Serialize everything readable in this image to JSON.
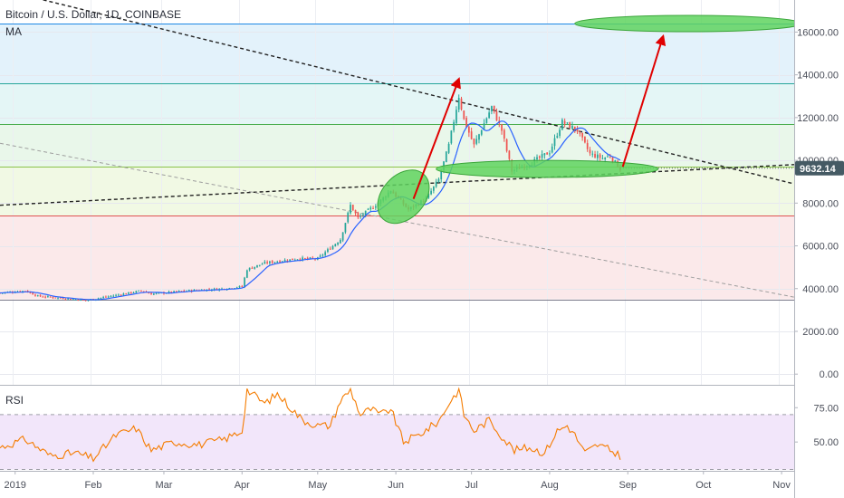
{
  "header": {
    "title": "Bitcoin / U.S. Dollar, 1D, COINBASE",
    "indicator": "MA"
  },
  "price_tag": "9632.14",
  "rsi_label": "RSI",
  "colors": {
    "bull": "#26a69a",
    "bear": "#ef5350",
    "ma": "#2962ff",
    "rsi": "#f57c00",
    "arrow": "#e00000",
    "ellipse": "#5fd35f",
    "price_tag_bg": "#455a64"
  },
  "chart_data": [
    {
      "type": "candlestick",
      "title": "Bitcoin / U.S. Dollar, 1D, COINBASE",
      "x_ticks": [
        "2019",
        "Feb",
        "Mar",
        "Apr",
        "May",
        "Jun",
        "Jul",
        "Aug",
        "Sep",
        "Oct",
        "Nov"
      ],
      "y_ticks": [
        "0.00",
        "2000.00",
        "4000.00",
        "6000.00",
        "8000.00",
        "10000.00",
        "12000.00",
        "14000.00",
        "16000.00"
      ],
      "y_range": [
        -500,
        17500
      ],
      "x_range": [
        "2018-12-26",
        "2019-11-06"
      ],
      "last_price": 9632.14,
      "close_series": [
        {
          "date": "2018-12-26",
          "close": 3800
        },
        {
          "date": "2019-01-05",
          "close": 3900
        },
        {
          "date": "2019-01-10",
          "close": 3650
        },
        {
          "date": "2019-01-20",
          "close": 3550
        },
        {
          "date": "2019-01-29",
          "close": 3450
        },
        {
          "date": "2019-02-08",
          "close": 3650
        },
        {
          "date": "2019-02-20",
          "close": 3900
        },
        {
          "date": "2019-02-24",
          "close": 3750
        },
        {
          "date": "2019-03-10",
          "close": 3900
        },
        {
          "date": "2019-03-25",
          "close": 4000
        },
        {
          "date": "2019-04-01",
          "close": 4100
        },
        {
          "date": "2019-04-03",
          "close": 4900
        },
        {
          "date": "2019-04-10",
          "close": 5200
        },
        {
          "date": "2019-04-23",
          "close": 5400
        },
        {
          "date": "2019-05-01",
          "close": 5400
        },
        {
          "date": "2019-05-10",
          "close": 6300
        },
        {
          "date": "2019-05-14",
          "close": 7900
        },
        {
          "date": "2019-05-17",
          "close": 7300
        },
        {
          "date": "2019-05-25",
          "close": 8000
        },
        {
          "date": "2019-05-30",
          "close": 8600
        },
        {
          "date": "2019-06-06",
          "close": 7700
        },
        {
          "date": "2019-06-13",
          "close": 8200
        },
        {
          "date": "2019-06-18",
          "close": 9100
        },
        {
          "date": "2019-06-22",
          "close": 10700
        },
        {
          "date": "2019-06-26",
          "close": 13000
        },
        {
          "date": "2019-06-28",
          "close": 11900
        },
        {
          "date": "2019-07-02",
          "close": 10700
        },
        {
          "date": "2019-07-09",
          "close": 12500
        },
        {
          "date": "2019-07-13",
          "close": 11400
        },
        {
          "date": "2019-07-17",
          "close": 9500
        },
        {
          "date": "2019-07-25",
          "close": 9900
        },
        {
          "date": "2019-08-01",
          "close": 10400
        },
        {
          "date": "2019-08-06",
          "close": 11800
        },
        {
          "date": "2019-08-12",
          "close": 11400
        },
        {
          "date": "2019-08-17",
          "close": 10300
        },
        {
          "date": "2019-08-22",
          "close": 10100
        },
        {
          "date": "2019-08-25",
          "close": 10200
        },
        {
          "date": "2019-08-29",
          "close": 9600
        }
      ],
      "levels": [
        3500,
        7400,
        9700,
        11700,
        13600,
        16400
      ],
      "zones": [
        {
          "from": 13600,
          "to": 16400,
          "color": "#e3f2fb"
        },
        {
          "from": 11700,
          "to": 13600,
          "color": "#e4f6f6"
        },
        {
          "from": 9700,
          "to": 11700,
          "color": "#e9f7ea"
        },
        {
          "from": 7400,
          "to": 9700,
          "color": "#f1f9e4"
        },
        {
          "from": 3500,
          "to": 7400,
          "color": "#fbe9ea"
        }
      ],
      "trendlines": [
        {
          "from": {
            "date": "2018-12-26",
            "price": 18000
          },
          "to": {
            "date": "2019-11-06",
            "price": 8900
          }
        },
        {
          "from": {
            "date": "2018-12-26",
            "price": 7900
          },
          "to": {
            "date": "2019-11-06",
            "price": 9800
          }
        },
        {
          "from": {
            "date": "2018-12-26",
            "price": 10800
          },
          "to": {
            "date": "2019-11-06",
            "price": 3600
          }
        }
      ],
      "arrows": [
        {
          "from": {
            "date": "2019-06-08",
            "price": 8200
          },
          "to": {
            "date": "2019-06-26",
            "price": 13800
          }
        },
        {
          "from": {
            "date": "2019-08-30",
            "price": 9700
          },
          "to": {
            "date": "2019-09-15",
            "price": 15800
          }
        }
      ],
      "ellipses": [
        {
          "date": "2019-06-04",
          "price": 8300,
          "rx_days": 12,
          "ry_price": 1000,
          "rotate": -48
        },
        {
          "date": "2019-07-31",
          "price": 9600,
          "rx_days": 44,
          "ry_price": 400,
          "rotate": 0
        },
        {
          "date": "2019-09-25",
          "price": 16400,
          "rx_days": 45,
          "ry_price": 380,
          "rotate": 0
        }
      ]
    },
    {
      "type": "line",
      "title": "RSI",
      "y_ticks": [
        "50.00",
        "75.00"
      ],
      "y_range": [
        29,
        91
      ],
      "band": [
        30,
        70
      ],
      "rsi_series": [
        {
          "date": "2018-12-26",
          "value": 46
        },
        {
          "date": "2019-01-05",
          "value": 52
        },
        {
          "date": "2019-01-15",
          "value": 40
        },
        {
          "date": "2019-01-25",
          "value": 42
        },
        {
          "date": "2019-02-01",
          "value": 38
        },
        {
          "date": "2019-02-10",
          "value": 55
        },
        {
          "date": "2019-02-18",
          "value": 60
        },
        {
          "date": "2019-02-24",
          "value": 44
        },
        {
          "date": "2019-03-05",
          "value": 50
        },
        {
          "date": "2019-03-15",
          "value": 48
        },
        {
          "date": "2019-03-25",
          "value": 52
        },
        {
          "date": "2019-04-01",
          "value": 58
        },
        {
          "date": "2019-04-03",
          "value": 88
        },
        {
          "date": "2019-04-10",
          "value": 78
        },
        {
          "date": "2019-04-15",
          "value": 85
        },
        {
          "date": "2019-04-25",
          "value": 66
        },
        {
          "date": "2019-05-01",
          "value": 62
        },
        {
          "date": "2019-05-06",
          "value": 62
        },
        {
          "date": "2019-05-10",
          "value": 80
        },
        {
          "date": "2019-05-14",
          "value": 88
        },
        {
          "date": "2019-05-18",
          "value": 70
        },
        {
          "date": "2019-05-22",
          "value": 74
        },
        {
          "date": "2019-05-26",
          "value": 70
        },
        {
          "date": "2019-05-30",
          "value": 74
        },
        {
          "date": "2019-06-04",
          "value": 50
        },
        {
          "date": "2019-06-10",
          "value": 55
        },
        {
          "date": "2019-06-18",
          "value": 65
        },
        {
          "date": "2019-06-22",
          "value": 78
        },
        {
          "date": "2019-06-26",
          "value": 88
        },
        {
          "date": "2019-06-28",
          "value": 70
        },
        {
          "date": "2019-07-02",
          "value": 58
        },
        {
          "date": "2019-07-08",
          "value": 66
        },
        {
          "date": "2019-07-14",
          "value": 52
        },
        {
          "date": "2019-07-18",
          "value": 44
        },
        {
          "date": "2019-07-24",
          "value": 46
        },
        {
          "date": "2019-07-30",
          "value": 42
        },
        {
          "date": "2019-08-04",
          "value": 58
        },
        {
          "date": "2019-08-08",
          "value": 62
        },
        {
          "date": "2019-08-11",
          "value": 55
        },
        {
          "date": "2019-08-15",
          "value": 42
        },
        {
          "date": "2019-08-20",
          "value": 48
        },
        {
          "date": "2019-08-25",
          "value": 44
        },
        {
          "date": "2019-08-29",
          "value": 40
        }
      ]
    }
  ]
}
